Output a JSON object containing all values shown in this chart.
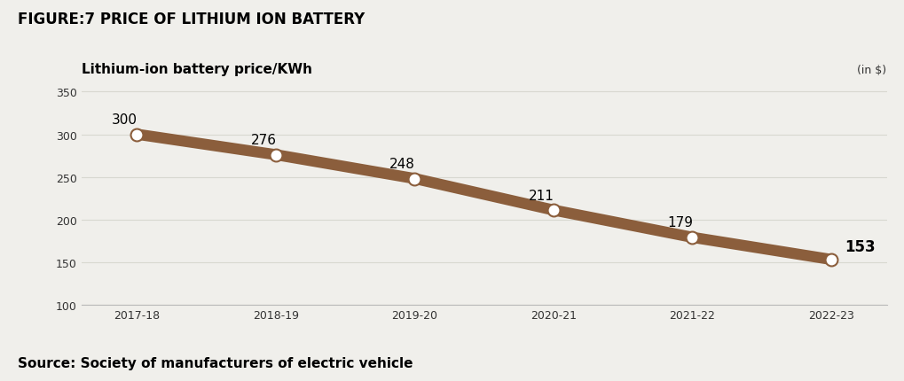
{
  "title": "FIGURE:7 PRICE OF LITHIUM ION BATTERY",
  "ylabel": "Lithium-ion battery price/KWh",
  "unit_label": "(in $)",
  "source": "Source: Society of manufacturers of electric vehicle",
  "categories": [
    "2017-18",
    "2018-19",
    "2019-20",
    "2020-21",
    "2021-22",
    "2022-23"
  ],
  "values": [
    300,
    276,
    248,
    211,
    179,
    153
  ],
  "ylim": [
    100,
    360
  ],
  "yticks": [
    100,
    150,
    200,
    250,
    300,
    350
  ],
  "line_color": "#8B5E3C",
  "line_width": 9,
  "marker_color": "white",
  "marker_edge_color": "#8B5E3C",
  "marker_size": 10,
  "bg_color": "#f0efeb",
  "plot_bg_color": "#f0efeb",
  "grid_color": "#d8d8d0",
  "title_fontsize": 12,
  "ylabel_fontsize": 11,
  "tick_fontsize": 9,
  "annotation_fontsize": 11,
  "last_annotation_fontsize": 12,
  "source_fontsize": 11
}
